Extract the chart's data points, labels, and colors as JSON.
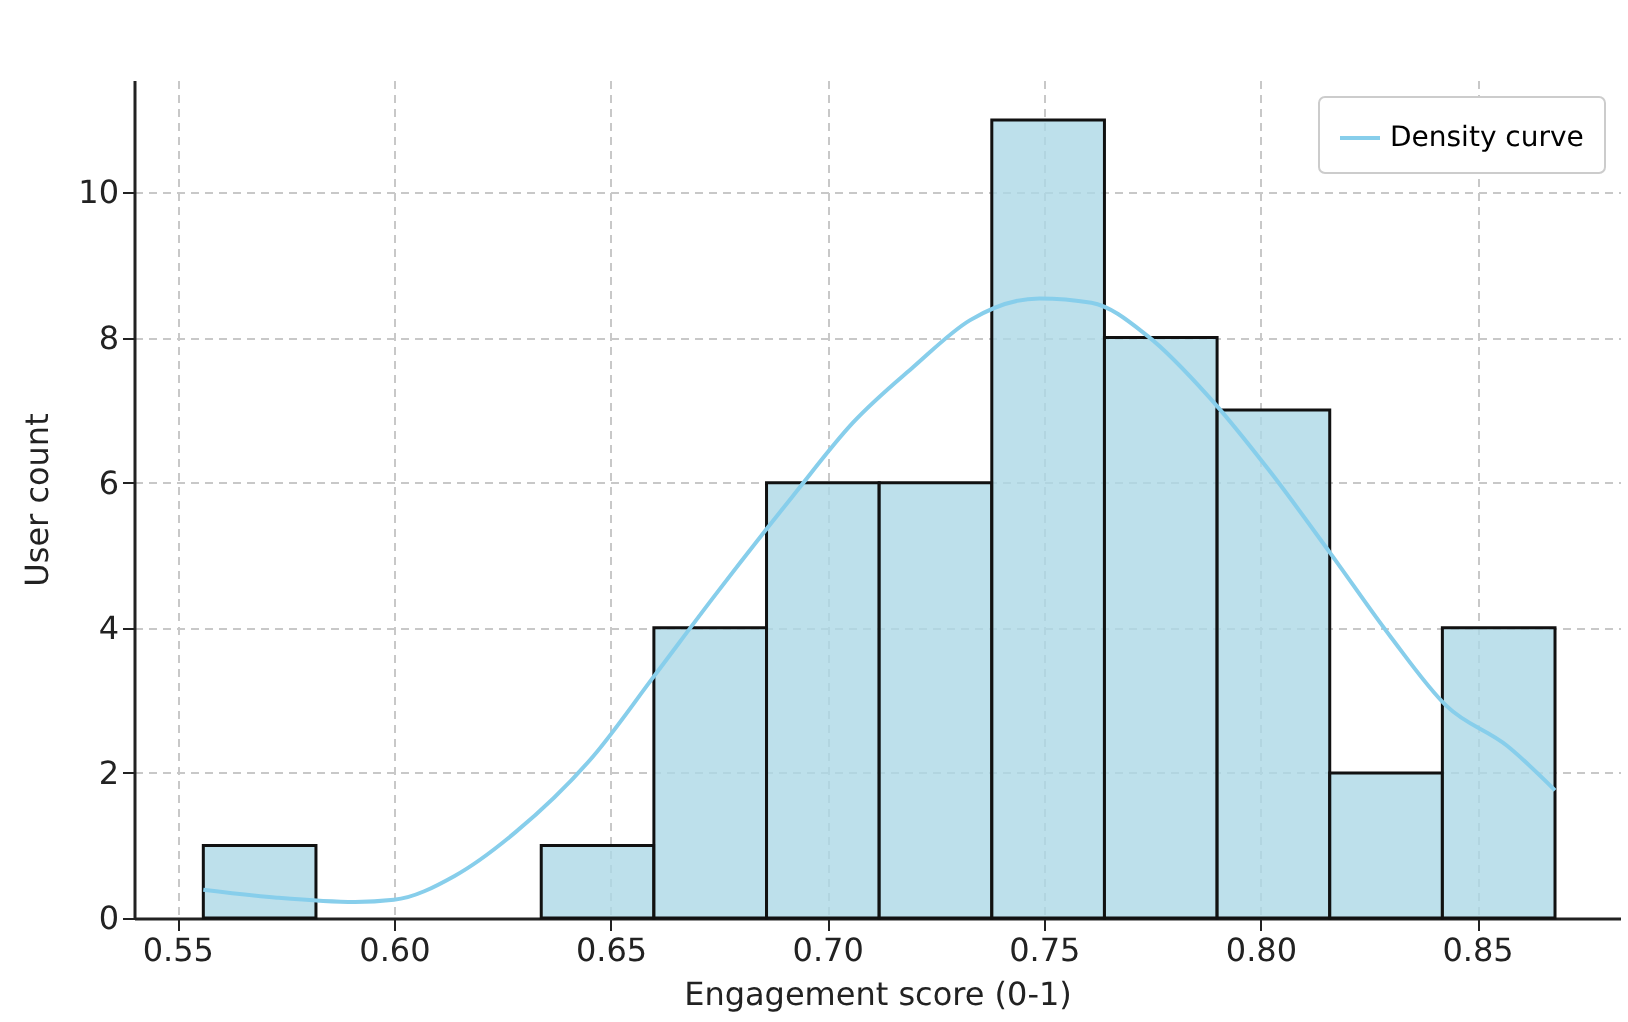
{
  "chart_data": {
    "type": "histogram",
    "xlabel": "Engagement score (0-1)",
    "ylabel": "User count",
    "bins": [
      0.556,
      0.582,
      0.608,
      0.634,
      0.66,
      0.686,
      0.712,
      0.738,
      0.764,
      0.79,
      0.816,
      0.842,
      0.868
    ],
    "series": [
      {
        "color": "#add8e6",
        "values": [
          1,
          0,
          0,
          1,
          4,
          6,
          6,
          11,
          8,
          7,
          2,
          4
        ]
      },
      {
        "type": "line",
        "name": "Density curve",
        "color": "#87ceeb",
        "x": [
          0.556,
          0.573,
          0.591,
          0.6,
          0.614,
          0.628,
          0.646,
          0.66,
          0.674,
          0.692,
          0.706,
          0.72,
          0.733,
          0.749,
          0.761,
          0.774,
          0.788,
          0.802,
          0.816,
          0.83,
          0.843,
          0.857,
          0.868
        ],
        "values": [
          0.39,
          0.28,
          0.22,
          0.25,
          0.58,
          1.18,
          2.23,
          3.33,
          4.44,
          5.81,
          6.83,
          7.6,
          8.24,
          8.54,
          8.48,
          8.02,
          7.19,
          6.17,
          5.04,
          3.88,
          2.92,
          2.37,
          1.76
        ]
      }
    ],
    "xlim": [
      0.54,
      0.883
    ],
    "ylim": [
      0,
      11.55
    ],
    "xticks": [
      0.55,
      {
        "value": 0.6,
        "label": "0.60"
      },
      0.65,
      {
        "value": 0.7,
        "label": "0.70"
      },
      0.75,
      {
        "value": 0.8,
        "label": "0.80"
      },
      0.85
    ],
    "yticks": [
      0,
      2,
      4,
      6,
      8,
      10
    ],
    "grid": true,
    "legend": "top right"
  }
}
